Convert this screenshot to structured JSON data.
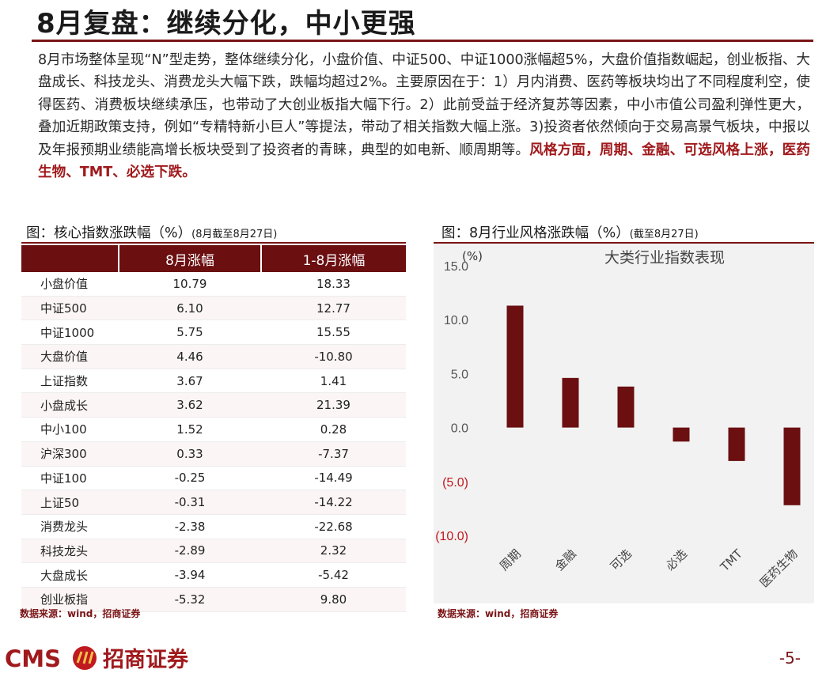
{
  "page": {
    "title": "8月复盘：继续分化，中小更强",
    "summary_plain": "8月市场整体呈现“N”型走势，整体继续分化，小盘价值、中证500、中证1000涨幅超5%，大盘价值指数崛起，创业板指、大盘成长、科技龙头、消费龙头大幅下跌，跌幅均超过2%。主要原因在于：1）月内消费、医药等板块均出了不同程度利空，使得医药、消费板块继续承压，也带动了大创业板指大幅下行。2）此前受益于经济复苏等因素，中小市值公司盈利弹性更大，叠加近期政策支持，例如“专精特新小巨人”等提法，带动了相关指数大幅上涨。3)投资者依然倾向于交易高景气板块，中报以及年报预期业绩能高增长板块受到了投资者的青睐，典型的如电新、顺周期等。",
    "summary_emphasis": "风格方面，周期、金融、可选风格上涨，医药生物、TMT、必选下跌。",
    "page_number": "-5-"
  },
  "table_panel": {
    "title": "图：核心指数涨跌幅（%）",
    "subtitle": "(8月截至8月27日)",
    "headers": [
      "",
      "8月涨幅",
      "1-8月涨幅"
    ],
    "rows": [
      {
        "name": "小盘价值",
        "aug": "10.79",
        "ytd": "18.33"
      },
      {
        "name": "中证500",
        "aug": "6.10",
        "ytd": "12.77"
      },
      {
        "name": "中证1000",
        "aug": "5.75",
        "ytd": "15.55"
      },
      {
        "name": "大盘价值",
        "aug": "4.46",
        "ytd": "-10.80"
      },
      {
        "name": "上证指数",
        "aug": "3.67",
        "ytd": "1.41"
      },
      {
        "name": "小盘成长",
        "aug": "3.62",
        "ytd": "21.39"
      },
      {
        "name": "中小100",
        "aug": "1.52",
        "ytd": "0.28"
      },
      {
        "name": "沪深300",
        "aug": "0.33",
        "ytd": "-7.37"
      },
      {
        "name": "中证100",
        "aug": "-0.25",
        "ytd": "-14.49"
      },
      {
        "name": "上证50",
        "aug": "-0.31",
        "ytd": "-14.22"
      },
      {
        "name": "消费龙头",
        "aug": "-2.38",
        "ytd": "-22.68"
      },
      {
        "name": "科技龙头",
        "aug": "-2.89",
        "ytd": "2.32"
      },
      {
        "name": "大盘成长",
        "aug": "-3.94",
        "ytd": "-5.42"
      },
      {
        "name": "创业板指",
        "aug": "-5.32",
        "ytd": "9.80"
      }
    ],
    "source": "数据来源：wind，招商证券"
  },
  "chart_panel": {
    "title": "图：8月行业风格涨跌幅（%）",
    "subtitle": "(截至8月27日)",
    "source": "数据来源：wind，招商证券"
  },
  "chart_data": {
    "type": "bar",
    "title": "大类行业指数表现",
    "ylabel": "(%)",
    "categories": [
      "周期",
      "金融",
      "可选",
      "必选",
      "TMT",
      "医药生物"
    ],
    "values": [
      11.3,
      4.6,
      3.8,
      -1.3,
      -3.1,
      -7.2
    ],
    "ylim": [
      -10,
      15
    ],
    "yticks": [
      15,
      10,
      5,
      0,
      -5,
      -10
    ],
    "ytick_labels": [
      "15.0",
      "10.0",
      "5.0",
      "0.0",
      "(5.0)",
      "(10.0)"
    ],
    "bar_color": "#6b0f11",
    "negative_label_color": "#c0191f",
    "grid": false
  },
  "footer": {
    "brand_en": "CMS",
    "brand_cn": "招商证券"
  }
}
